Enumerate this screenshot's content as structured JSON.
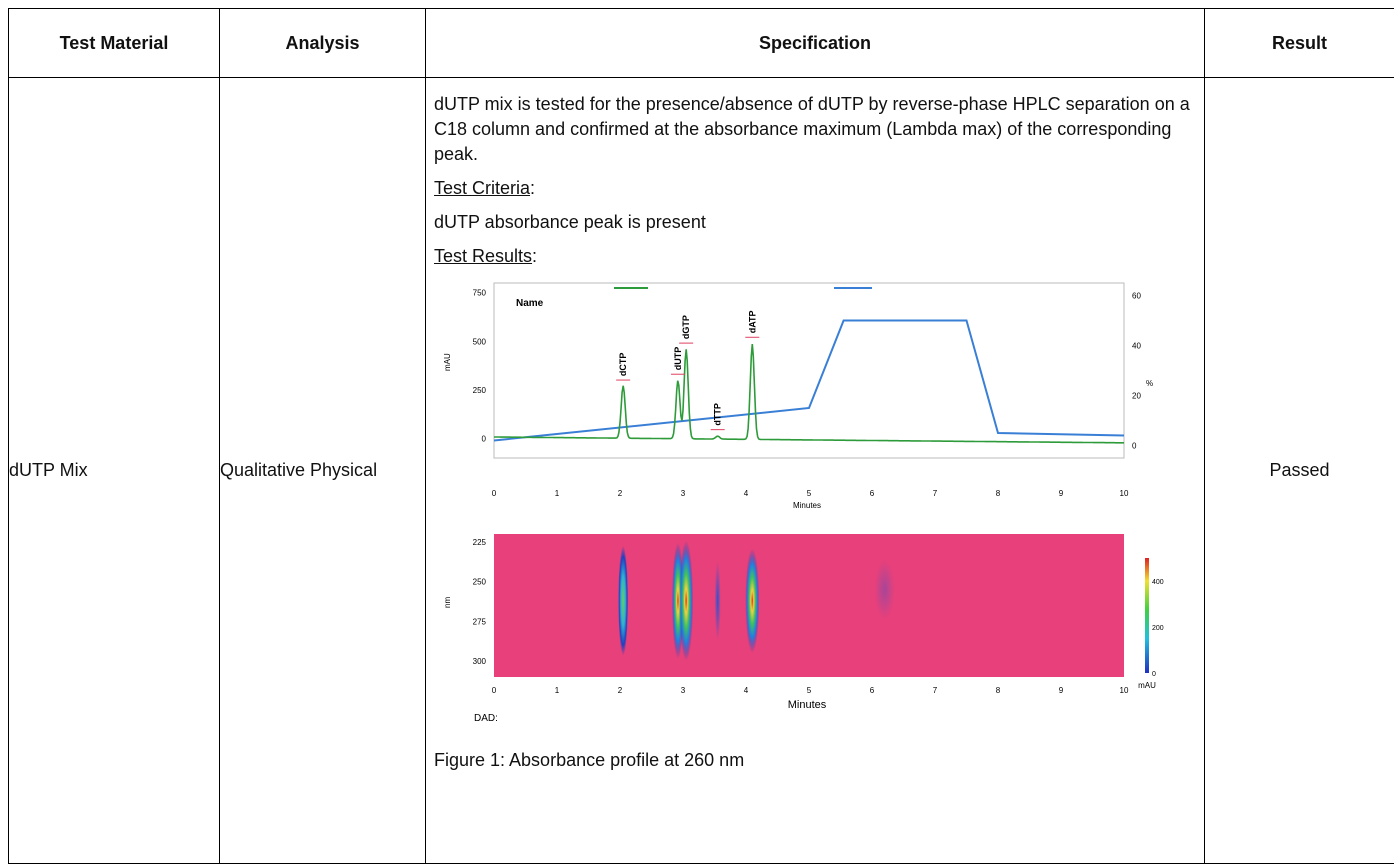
{
  "table": {
    "headers": [
      "Test Material",
      "Analysis",
      "Specification",
      "Result"
    ],
    "row": {
      "material": "dUTP Mix",
      "analysis": "Qualitative Physical",
      "result": "Passed",
      "spec_paragraph": "dUTP mix is tested for the presence/absence of dUTP by reverse-phase HPLC separation on a C18 column and confirmed at the absorbance maximum (Lambda max) of the corresponding peak.",
      "criteria_heading": "Test Criteria",
      "criteria_text": "dUTP absorbance peak is present",
      "results_heading": "Test Results",
      "figure_caption": "Figure 1: Absorbance profile at 260 nm"
    }
  },
  "chart_data": [
    {
      "type": "line",
      "legend_title": "Name",
      "xlabel": "Minutes",
      "ylabel": "mAU",
      "y2label": "%",
      "xlim": [
        0,
        10
      ],
      "ylim": [
        -100,
        800
      ],
      "y2lim": [
        -5,
        65
      ],
      "x_ticks": [
        0,
        1,
        2,
        3,
        4,
        5,
        6,
        7,
        8,
        9,
        10
      ],
      "y_ticks": [
        0,
        250,
        500,
        750
      ],
      "y2_ticks": [
        0,
        20,
        40,
        60
      ],
      "peaks": [
        {
          "label": "dCTP",
          "x": 2.05,
          "y": 270
        },
        {
          "label": "dUTP",
          "x": 2.92,
          "y": 300
        },
        {
          "label": "dGTP",
          "x": 3.05,
          "y": 460
        },
        {
          "label": "dTTP",
          "x": 3.55,
          "y": 15
        },
        {
          "label": "dATP",
          "x": 4.1,
          "y": 490
        }
      ],
      "series": [
        {
          "color": "#2e9b3a",
          "role": "absorbance"
        },
        {
          "color": "#3a7fd6",
          "role": "gradient",
          "x": [
            0,
            5,
            5.55,
            7.5,
            8.0,
            10
          ],
          "y": [
            2,
            15,
            50,
            50,
            5,
            4
          ]
        }
      ]
    },
    {
      "type": "heatmap",
      "xlabel": "Minutes",
      "ylabel": "nm",
      "footer": "DAD:",
      "colorbar_label": "mAU",
      "colorbar_ticks": [
        0,
        200,
        400
      ],
      "x_ticks": [
        0,
        1,
        2,
        3,
        4,
        5,
        6,
        7,
        8,
        9,
        10
      ],
      "y_ticks": [
        225,
        250,
        275,
        300
      ],
      "background_color": "#e8407a"
    }
  ]
}
